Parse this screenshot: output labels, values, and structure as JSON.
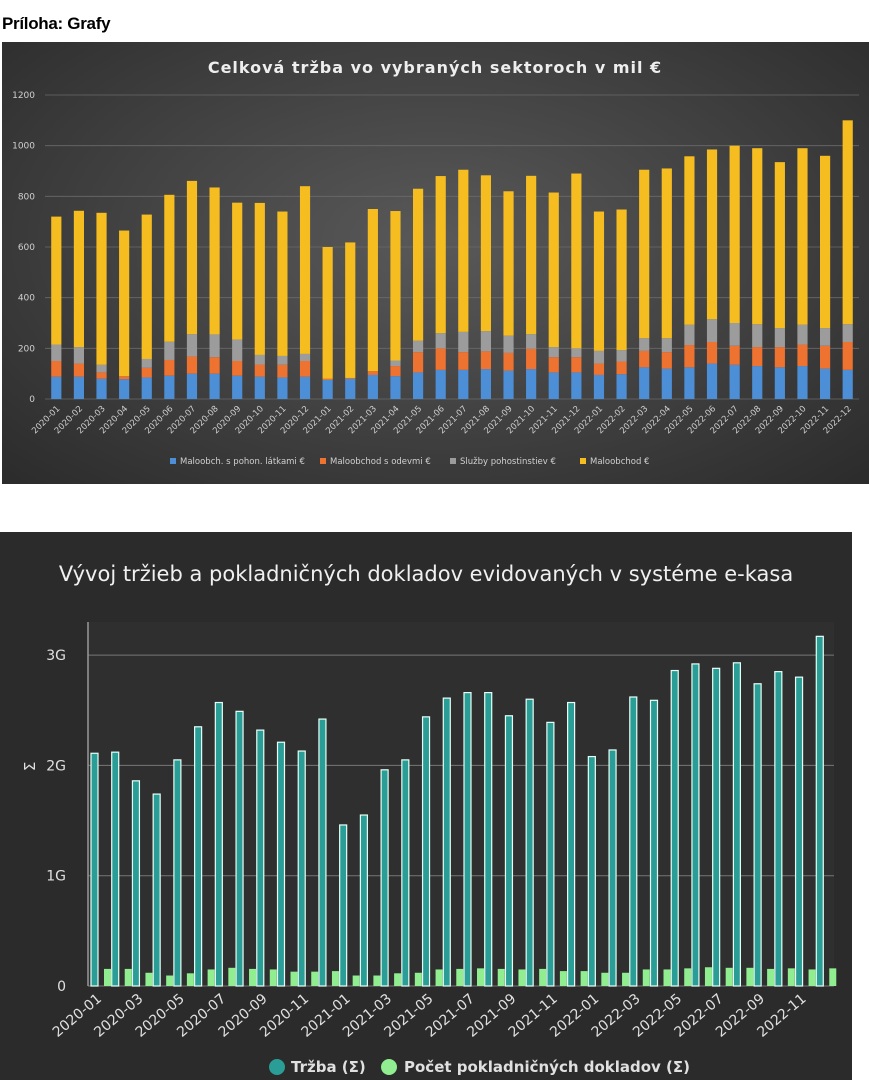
{
  "page": {
    "heading": "Príloha: Grafy"
  },
  "chart_data": [
    {
      "type": "bar",
      "stacked": true,
      "title": "Celková tržba vo vybraných sektoroch v mil €",
      "xlabel": "",
      "ylabel": "",
      "ylim": [
        0,
        1200
      ],
      "yticks": [
        0,
        200,
        400,
        600,
        800,
        1000,
        1200
      ],
      "grid": true,
      "legend_position": "bottom",
      "categories": [
        "2020-01",
        "2020-02",
        "2020-03",
        "2020-04",
        "2020-05",
        "2020-06",
        "2020-07",
        "2020-08",
        "2020-09",
        "2020-10",
        "2020-11",
        "2020-12",
        "2021-01",
        "2021-02",
        "2021-03",
        "2021-04",
        "2021-05",
        "2021-06",
        "2021-07",
        "2021-08",
        "2021-09",
        "2021-10",
        "2021-11",
        "2021-12",
        "2022-01",
        "2022-02",
        "2022-03",
        "2022-04",
        "2022-05",
        "2022-06",
        "2022-07",
        "2022-08",
        "2022-09",
        "2022-10",
        "2022-11",
        "2022-12"
      ],
      "series": [
        {
          "name": "Maloobch. s pohon. látkami €",
          "color": "#4d8fd6",
          "values": [
            88,
            88,
            80,
            78,
            85,
            92,
            100,
            100,
            92,
            88,
            85,
            88,
            75,
            80,
            95,
            90,
            105,
            115,
            115,
            118,
            112,
            118,
            105,
            105,
            95,
            98,
            125,
            120,
            125,
            140,
            135,
            130,
            125,
            130,
            120,
            115
          ]
        },
        {
          "name": "Maloobchod s odevmi €",
          "color": "#ee7230",
          "values": [
            62,
            52,
            25,
            12,
            38,
            62,
            68,
            65,
            58,
            48,
            50,
            62,
            5,
            3,
            15,
            40,
            80,
            85,
            70,
            70,
            70,
            80,
            60,
            60,
            45,
            50,
            65,
            65,
            88,
            85,
            75,
            75,
            80,
            85,
            90,
            110
          ]
        },
        {
          "name": "Služby pohostinstiev €",
          "color": "#9c9c9c",
          "values": [
            65,
            65,
            30,
            0,
            35,
            72,
            88,
            90,
            85,
            38,
            35,
            28,
            0,
            0,
            0,
            22,
            45,
            60,
            80,
            80,
            68,
            58,
            40,
            35,
            50,
            45,
            50,
            55,
            80,
            90,
            90,
            90,
            75,
            78,
            70,
            70
          ]
        },
        {
          "name": "Maloobchod €",
          "color": "#f6bd21",
          "values": [
            505,
            538,
            600,
            575,
            570,
            580,
            605,
            580,
            540,
            600,
            570,
            662,
            520,
            535,
            640,
            590,
            600,
            620,
            640,
            615,
            570,
            625,
            610,
            690,
            550,
            555,
            665,
            670,
            665,
            670,
            700,
            695,
            655,
            697,
            680,
            805
          ]
        }
      ]
    },
    {
      "type": "bar",
      "title": "Vývoj tržieb a pokladničných dokladov evidovaných v systéme e-kasa",
      "xlabel": "",
      "ylabel": "Σ",
      "ylim": [
        0,
        3300000000
      ],
      "yticks": [
        0,
        1000000000,
        2000000000,
        3000000000
      ],
      "ytick_labels": [
        "0",
        "1G",
        "2G",
        "3G"
      ],
      "grid": true,
      "legend_position": "bottom",
      "categories": [
        "2020-01",
        "2020-02",
        "2020-03",
        "2020-04",
        "2020-05",
        "2020-06",
        "2020-07",
        "2020-08",
        "2020-09",
        "2020-10",
        "2020-11",
        "2020-12",
        "2021-01",
        "2021-02",
        "2021-03",
        "2021-04",
        "2021-05",
        "2021-06",
        "2021-07",
        "2021-08",
        "2021-09",
        "2021-10",
        "2021-11",
        "2021-12",
        "2022-01",
        "2022-02",
        "2022-03",
        "2022-04",
        "2022-05",
        "2022-06",
        "2022-07",
        "2022-08",
        "2022-09",
        "2022-10",
        "2022-11",
        "2022-12"
      ],
      "xtick_labels": [
        "2020-01",
        "2020-03",
        "2020-05",
        "2020-07",
        "2020-09",
        "2020-11",
        "2021-01",
        "2021-03",
        "2021-05",
        "2021-07",
        "2021-09",
        "2021-11",
        "2022-01",
        "2022-03",
        "2022-05",
        "2022-07",
        "2022-09",
        "2022-11"
      ],
      "series": [
        {
          "name": "Tržba (Σ)",
          "color": "#2a9d96",
          "values": [
            2110000000,
            2120000000,
            1860000000,
            1740000000,
            2050000000,
            2350000000,
            2570000000,
            2490000000,
            2320000000,
            2210000000,
            2130000000,
            2420000000,
            1460000000,
            1550000000,
            1960000000,
            2050000000,
            2440000000,
            2610000000,
            2660000000,
            2660000000,
            2450000000,
            2600000000,
            2390000000,
            2570000000,
            2080000000,
            2140000000,
            2620000000,
            2590000000,
            2860000000,
            2920000000,
            2880000000,
            2930000000,
            2740000000,
            2850000000,
            2800000000,
            3170000000
          ]
        },
        {
          "name": "Počet pokladničných dokladov (Σ)",
          "color": "#90ee90",
          "values": [
            155000000,
            155000000,
            120000000,
            95000000,
            115000000,
            150000000,
            165000000,
            155000000,
            150000000,
            130000000,
            130000000,
            135000000,
            95000000,
            95000000,
            115000000,
            120000000,
            150000000,
            155000000,
            160000000,
            155000000,
            150000000,
            155000000,
            135000000,
            135000000,
            120000000,
            120000000,
            150000000,
            150000000,
            160000000,
            170000000,
            165000000,
            165000000,
            155000000,
            160000000,
            150000000,
            160000000
          ]
        }
      ]
    }
  ]
}
